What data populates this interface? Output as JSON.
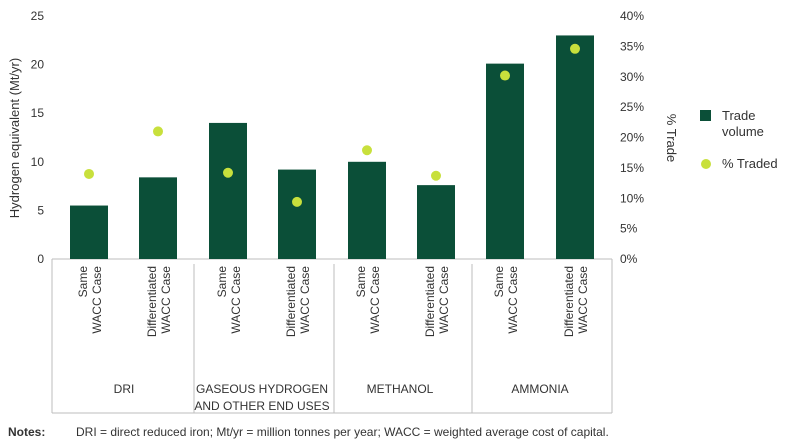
{
  "chart_data": {
    "type": "bar",
    "left_axis": {
      "label": "Hydrogen equivalent (Mt/yr)",
      "range": [
        0,
        25
      ],
      "ticks": [
        "0",
        "5",
        "10",
        "15",
        "20",
        "25"
      ]
    },
    "right_axis": {
      "label": "% Trade",
      "range": [
        0,
        40
      ],
      "ticks": [
        "0%",
        "5%",
        "10%",
        "15%",
        "20%",
        "25%",
        "30%",
        "35%",
        "40%"
      ]
    },
    "groups": [
      {
        "label_lines": [
          "DRI"
        ],
        "cases": [
          {
            "label_lines": [
              "Same",
              "WACC Case"
            ],
            "trade_volume": 5.5,
            "pct_traded": 14
          },
          {
            "label_lines": [
              "Differentiated",
              "WACC Case"
            ],
            "trade_volume": 8.4,
            "pct_traded": 21
          }
        ]
      },
      {
        "label_lines": [
          "GASEOUS HYDROGEN",
          "AND OTHER END USES"
        ],
        "cases": [
          {
            "label_lines": [
              "Same",
              "WACC Case"
            ],
            "trade_volume": 14.0,
            "pct_traded": 14.2
          },
          {
            "label_lines": [
              "Differentiated",
              "WACC Case"
            ],
            "trade_volume": 9.2,
            "pct_traded": 9.4
          }
        ]
      },
      {
        "label_lines": [
          "METHANOL"
        ],
        "cases": [
          {
            "label_lines": [
              "Same",
              "WACC Case"
            ],
            "trade_volume": 10.0,
            "pct_traded": 17.9
          },
          {
            "label_lines": [
              "Differentiated",
              "WACC Case"
            ],
            "trade_volume": 7.6,
            "pct_traded": 13.7
          }
        ]
      },
      {
        "label_lines": [
          "AMMONIA"
        ],
        "cases": [
          {
            "label_lines": [
              "Same",
              "WACC Case"
            ],
            "trade_volume": 20.1,
            "pct_traded": 30.2
          },
          {
            "label_lines": [
              "Differentiated",
              "WACC Case"
            ],
            "trade_volume": 23.0,
            "pct_traded": 34.6
          }
        ]
      }
    ],
    "series": [
      {
        "name": "Trade volume",
        "color": "#0b4f38",
        "kind": "bar"
      },
      {
        "name": "% Traded",
        "color": "#c8e03c",
        "kind": "dot"
      }
    ],
    "legend_position": "right"
  },
  "legend": {
    "trade_volume": "Trade volume",
    "pct_traded": "% Traded"
  },
  "notes": {
    "label": "Notes:",
    "text": "DRI = direct reduced iron; Mt/yr = million tonnes per year; WACC = weighted average cost of capital."
  }
}
